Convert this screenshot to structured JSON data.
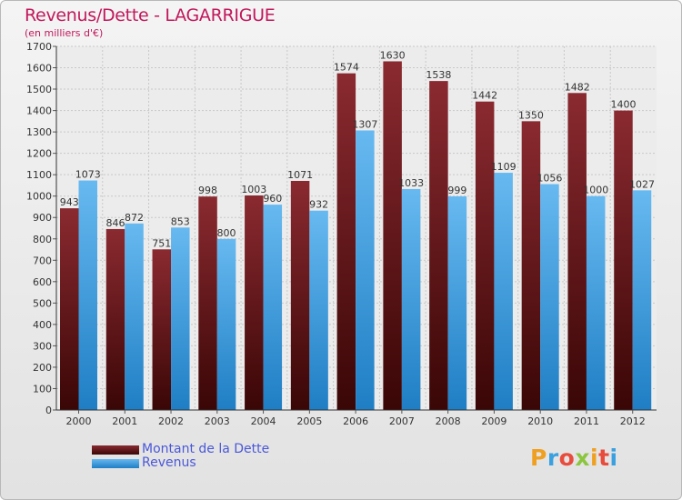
{
  "title": "Revenus/Dette - LAGARRIGUE",
  "subtitle": "(en milliers d'€)",
  "colors": {
    "title": "#c2185b",
    "dette_top": "#8a2a30",
    "dette_bottom": "#3a0606",
    "revenus_top": "#67b9f0",
    "revenus_bottom": "#1f7ec4",
    "legend_text": "#4a58d8"
  },
  "legend": {
    "items": [
      {
        "label": "Montant de la Dette"
      },
      {
        "label": "Revenus"
      }
    ]
  },
  "logo": {
    "text": "Proxiti"
  },
  "chart_data": {
    "type": "bar",
    "categories": [
      "2000",
      "2001",
      "2002",
      "2003",
      "2004",
      "2005",
      "2006",
      "2007",
      "2008",
      "2009",
      "2010",
      "2011",
      "2012"
    ],
    "series": [
      {
        "name": "Montant de la Dette",
        "values": [
          943,
          846,
          751,
          998,
          1003,
          1071,
          1574,
          1630,
          1538,
          1442,
          1350,
          1482,
          1400
        ]
      },
      {
        "name": "Revenus",
        "values": [
          1073,
          872,
          853,
          800,
          960,
          932,
          1307,
          1033,
          999,
          1109,
          1056,
          1000,
          1027
        ]
      }
    ],
    "title": "Revenus/Dette - LAGARRIGUE",
    "subtitle": "(en milliers d'€)",
    "ylim": [
      0,
      1700
    ],
    "yticks": [
      0,
      100,
      200,
      300,
      400,
      500,
      600,
      700,
      800,
      900,
      1000,
      1100,
      1200,
      1300,
      1400,
      1500,
      1600,
      1700
    ],
    "grid": true,
    "legend_position": "bottom-left"
  }
}
